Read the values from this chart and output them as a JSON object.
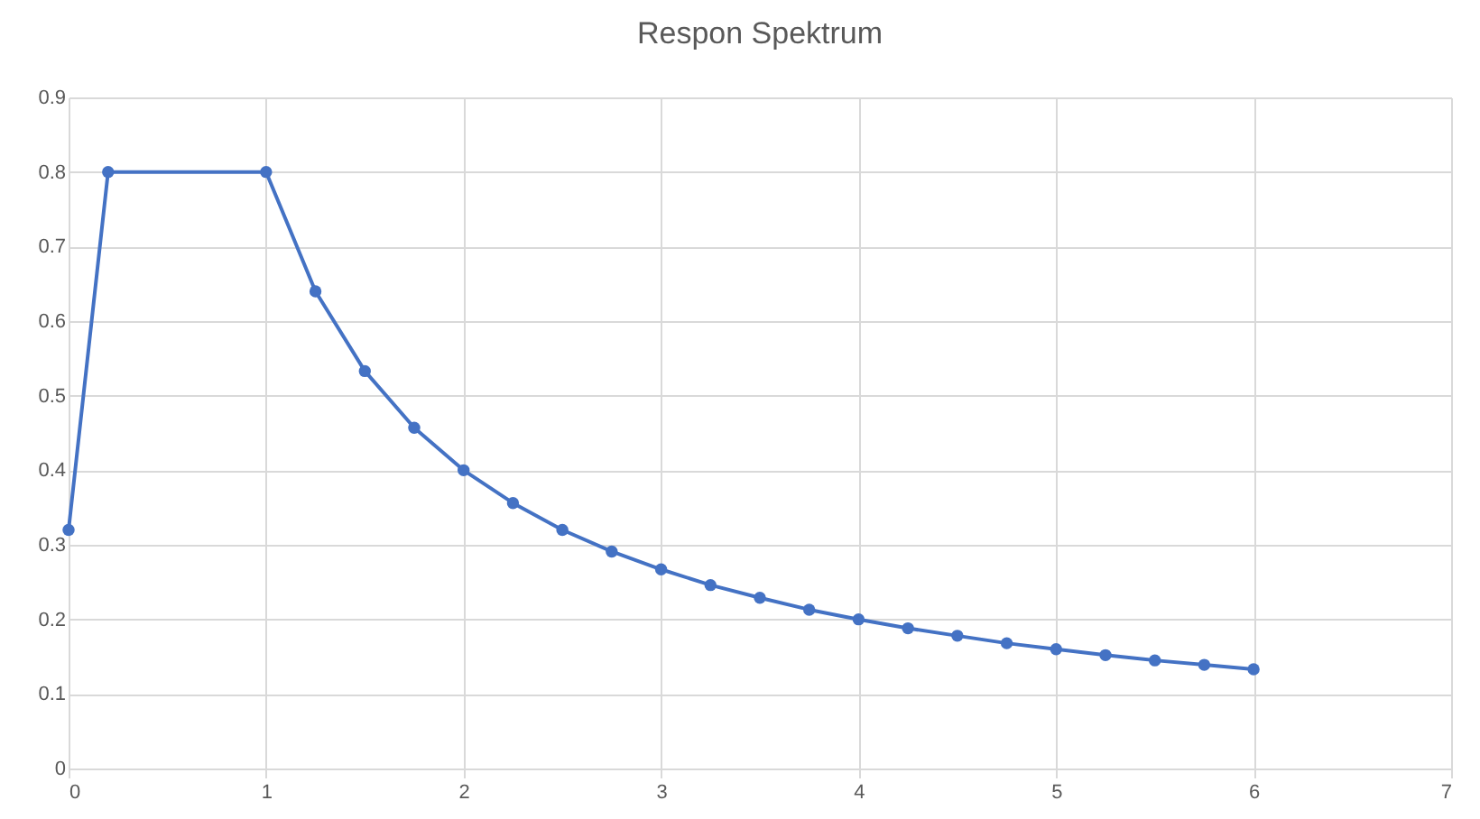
{
  "chart_data": {
    "type": "line",
    "title": "Respon Spektrum",
    "x": [
      0,
      0.2,
      1,
      1.25,
      1.5,
      1.75,
      2,
      2.25,
      2.5,
      2.75,
      3,
      3.25,
      3.5,
      3.75,
      4,
      4.25,
      4.5,
      4.75,
      5,
      5.25,
      5.5,
      5.75,
      6
    ],
    "series": [
      {
        "color": "#4472c4",
        "values": [
          0.32,
          0.8,
          0.8,
          0.64,
          0.533,
          0.457,
          0.4,
          0.356,
          0.32,
          0.291,
          0.267,
          0.246,
          0.229,
          0.213,
          0.2,
          0.188,
          0.178,
          0.168,
          0.16,
          0.152,
          0.145,
          0.139,
          0.133
        ]
      }
    ],
    "xlim": [
      0,
      7
    ],
    "xticks": [
      0,
      1,
      2,
      3,
      4,
      5,
      6,
      7
    ],
    "ylim": [
      0,
      0.9
    ],
    "yticks": [
      0,
      0.1,
      0.2,
      0.3,
      0.4,
      0.5,
      0.6,
      0.7,
      0.8,
      0.9
    ],
    "grid": true,
    "marker": "circle",
    "line_style": "solid"
  }
}
